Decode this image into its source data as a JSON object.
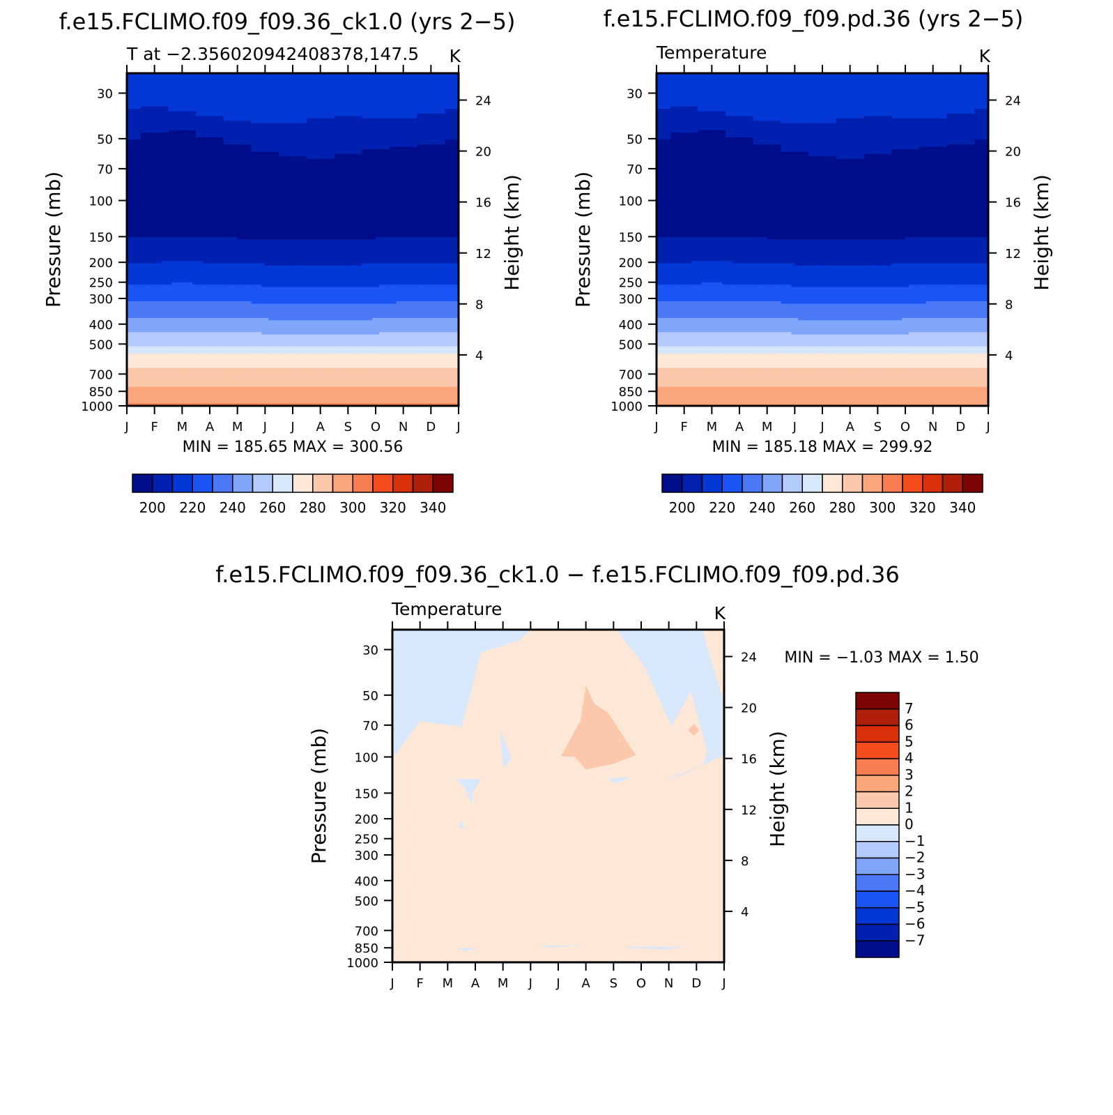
{
  "panels": [
    {
      "title": "f.e15.FCLIMO.f09_f09.36_ck1.0 (yrs 2−5)",
      "left_label": "T at −2.356020942408378,147.5",
      "right_label": "K",
      "stats": "MIN = 185.65 MAX = 300.56"
    },
    {
      "title": "f.e15.FCLIMO.f09_f09.pd.36 (yrs 2−5)",
      "left_label": "Temperature",
      "right_label": "K",
      "stats": "MIN = 185.18 MAX = 299.92"
    },
    {
      "title": "f.e15.FCLIMO.f09_f09.36_ck1.0 − f.e15.FCLIMO.f09_f09.pd.36",
      "left_label": "Temperature",
      "right_label": "K",
      "stats": "MIN = −1.03 MAX = 1.50"
    }
  ],
  "chart_data": [
    {
      "type": "heatmap",
      "title": "f.e15.FCLIMO.f09_f09.36_ck1.0 (yrs 2−5)",
      "xlabel": "",
      "ylabel": "Pressure (mb)",
      "y2label": "Height (km)",
      "x_ticks": [
        "J",
        "F",
        "M",
        "A",
        "M",
        "J",
        "J",
        "A",
        "S",
        "O",
        "N",
        "D",
        "J"
      ],
      "y_ticks": [
        30,
        50,
        70,
        100,
        150,
        200,
        250,
        300,
        400,
        500,
        700,
        850,
        1000
      ],
      "y2_ticks": [
        24,
        20,
        16,
        12,
        8,
        4
      ],
      "y_scale": "log",
      "ylim": [
        1000,
        24
      ],
      "colorbar": {
        "orientation": "horizontal",
        "labels": [
          "200",
          "220",
          "240",
          "260",
          "280",
          "300",
          "320",
          "340"
        ],
        "colors": [
          "#000e8c",
          "#0020b0",
          "#0438d6",
          "#1a54f5",
          "#4a78f7",
          "#80a6fa",
          "#b3cafc",
          "#d7e7fc",
          "#fde7d6",
          "#fcc8ab",
          "#fca67c",
          "#f97d51",
          "#f44c1b",
          "#d8300b",
          "#b01f0a",
          "#7e0404"
        ],
        "min": 200,
        "step": 10
      },
      "contour_levels_by_month": [
        {
          "level": 260,
          "p": [
            515,
            515,
            512,
            512,
            514,
            515,
            515,
            517,
            516,
            516,
            515,
            514,
            515
          ]
        },
        {
          "level": 250,
          "p": [
            440,
            440,
            438,
            440,
            442,
            444,
            446,
            448,
            446,
            444,
            442,
            440,
            440
          ]
        },
        {
          "level": 240,
          "p": [
            372,
            372,
            370,
            372,
            374,
            378,
            380,
            382,
            380,
            378,
            375,
            372,
            372
          ]
        },
        {
          "level": 230,
          "p": [
            310,
            310,
            308,
            310,
            312,
            316,
            318,
            320,
            318,
            316,
            313,
            310,
            310
          ]
        },
        {
          "level": 220,
          "p": [
            255,
            255,
            253,
            255,
            258,
            261,
            263,
            265,
            263,
            261,
            258,
            255,
            255
          ]
        },
        {
          "level": 210,
          "p": [
            200,
            200,
            198,
            200,
            202,
            205,
            207,
            208,
            206,
            204,
            202,
            200,
            200
          ]
        },
        {
          "level": 200,
          "p": [
            152,
            152,
            150,
            150,
            152,
            154,
            155,
            156,
            154,
            152,
            151,
            150,
            150
          ]
        },
        {
          "level": 210,
          "p": [
            50,
            47,
            46,
            49,
            54,
            58,
            61,
            62,
            60,
            57,
            55,
            54,
            50
          ]
        },
        {
          "level": 220,
          "p": [
            36,
            35,
            37,
            39,
            41,
            42,
            42,
            40,
            39,
            40,
            40,
            38,
            36
          ]
        }
      ]
    },
    {
      "type": "heatmap",
      "title": "f.e15.FCLIMO.f09_f09.pd.36 (yrs 2−5)",
      "xlabel": "",
      "ylabel": "Pressure (mb)",
      "y2label": "Height (km)",
      "x_ticks": [
        "J",
        "F",
        "M",
        "A",
        "M",
        "J",
        "J",
        "A",
        "S",
        "O",
        "N",
        "D",
        "J"
      ],
      "y_ticks": [
        30,
        50,
        70,
        100,
        150,
        200,
        250,
        300,
        400,
        500,
        700,
        850,
        1000
      ],
      "y2_ticks": [
        24,
        20,
        16,
        12,
        8,
        4
      ],
      "y_scale": "log",
      "ylim": [
        1000,
        24
      ],
      "colorbar": {
        "orientation": "horizontal",
        "labels": [
          "200",
          "220",
          "240",
          "260",
          "280",
          "300",
          "320",
          "340"
        ],
        "colors": [
          "#000e8c",
          "#0020b0",
          "#0438d6",
          "#1a54f5",
          "#4a78f7",
          "#80a6fa",
          "#b3cafc",
          "#d7e7fc",
          "#fde7d6",
          "#fcc8ab",
          "#fca67c",
          "#f97d51",
          "#f44c1b",
          "#d8300b",
          "#b01f0a",
          "#7e0404"
        ],
        "min": 200,
        "step": 10
      }
    },
    {
      "type": "heatmap",
      "title": "f.e15.FCLIMO.f09_f09.36_ck1.0 − f.e15.FCLIMO.f09_f09.pd.36",
      "xlabel": "",
      "ylabel": "Pressure (mb)",
      "y2label": "Height (km)",
      "x_ticks": [
        "J",
        "F",
        "M",
        "A",
        "M",
        "J",
        "J",
        "A",
        "S",
        "O",
        "N",
        "D",
        "J"
      ],
      "y_ticks": [
        30,
        50,
        70,
        100,
        150,
        200,
        250,
        300,
        400,
        500,
        700,
        850,
        1000
      ],
      "y2_ticks": [
        24,
        20,
        16,
        12,
        8,
        4
      ],
      "y_scale": "log",
      "ylim": [
        1000,
        24
      ],
      "colorbar": {
        "orientation": "vertical",
        "labels": [
          "7",
          "6",
          "5",
          "4",
          "3",
          "2",
          "1",
          "0",
          "−1",
          "−2",
          "−3",
          "−4",
          "−5",
          "−6",
          "−7"
        ],
        "colors": [
          "#7e0404",
          "#b01f0a",
          "#d8300b",
          "#f44c1b",
          "#f97d51",
          "#fca67c",
          "#fcc8ab",
          "#fde7d6",
          "#d7e7fc",
          "#b3cafc",
          "#80a6fa",
          "#4a78f7",
          "#1a54f5",
          "#0438d6",
          "#0020b0",
          "#000e8c"
        ]
      }
    }
  ]
}
